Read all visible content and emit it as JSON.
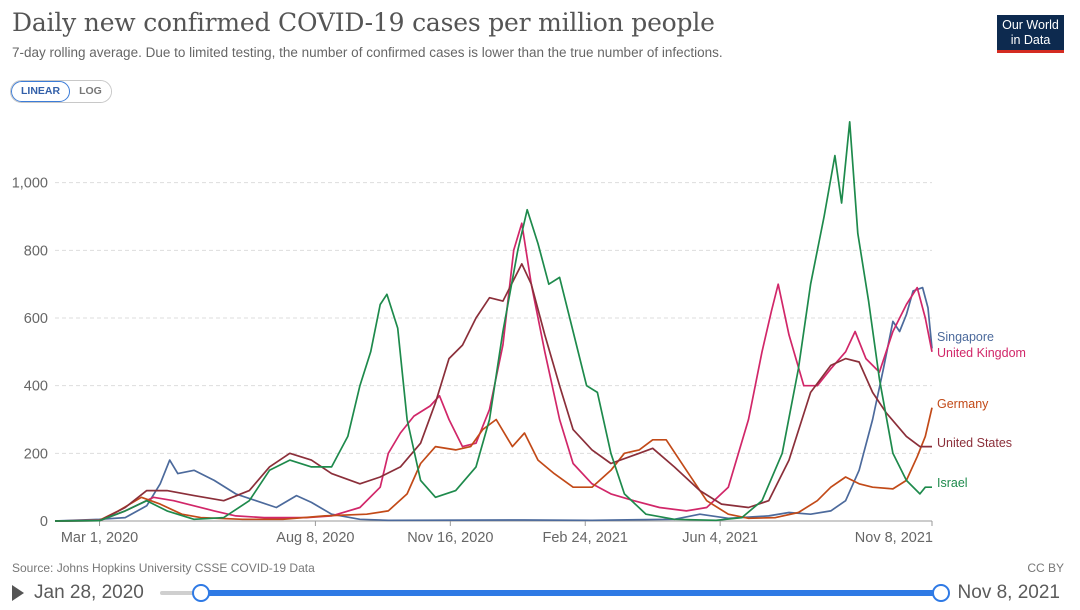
{
  "header": {
    "title": "Daily new confirmed COVID-19 cases per million people",
    "subtitle": "7-day rolling average. Due to limited testing, the number of confirmed cases is lower than the true number of infections."
  },
  "logo": {
    "line1": "Our World",
    "line2": "in Data",
    "bg": "#0d2a4f",
    "accent": "#d42b21"
  },
  "scale_toggle": {
    "linear": "LINEAR",
    "log": "LOG",
    "active": "linear"
  },
  "footer": {
    "source": "Source: Johns Hopkins University CSSE COVID-19 Data",
    "license": "CC BY"
  },
  "timeline": {
    "start": "Jan 28, 2020",
    "end": "Nov 8, 2021",
    "icon": "play-icon"
  },
  "chart_data": {
    "type": "line",
    "title": "Daily new confirmed COVID-19 cases per million people",
    "xlabel": "",
    "ylabel": "",
    "x_range": [
      "2020-01-28",
      "2021-11-08"
    ],
    "ylim": [
      0,
      1200
    ],
    "y_ticks": [
      0,
      200,
      400,
      600,
      800,
      1000
    ],
    "y_tick_labels": [
      "0",
      "200",
      "400",
      "600",
      "800",
      "1,000"
    ],
    "x_ticks": [
      {
        "date": "2020-03-01",
        "label": "Mar 1, 2020"
      },
      {
        "date": "2020-08-08",
        "label": "Aug 8, 2020"
      },
      {
        "date": "2020-11-16",
        "label": "Nov 16, 2020"
      },
      {
        "date": "2021-02-24",
        "label": "Feb 24, 2021"
      },
      {
        "date": "2021-06-04",
        "label": "Jun 4, 2021"
      },
      {
        "date": "2021-11-08",
        "label": "Nov 8, 2021"
      }
    ],
    "grid": "horizontal-dashed",
    "legend": "right-end-labels",
    "series": [
      {
        "name": "Singapore",
        "color": "#4c6a9c",
        "points": [
          [
            "2020-01-28",
            0
          ],
          [
            "2020-03-01",
            5
          ],
          [
            "2020-03-20",
            10
          ],
          [
            "2020-04-05",
            45
          ],
          [
            "2020-04-15",
            110
          ],
          [
            "2020-04-22",
            180
          ],
          [
            "2020-04-28",
            140
          ],
          [
            "2020-05-10",
            150
          ],
          [
            "2020-05-25",
            120
          ],
          [
            "2020-06-10",
            80
          ],
          [
            "2020-06-25",
            60
          ],
          [
            "2020-07-10",
            40
          ],
          [
            "2020-07-25",
            75
          ],
          [
            "2020-08-05",
            55
          ],
          [
            "2020-08-20",
            20
          ],
          [
            "2020-09-10",
            5
          ],
          [
            "2020-10-01",
            2
          ],
          [
            "2021-01-10",
            3
          ],
          [
            "2021-03-01",
            2
          ],
          [
            "2021-05-01",
            5
          ],
          [
            "2021-05-20",
            20
          ],
          [
            "2021-06-10",
            8
          ],
          [
            "2021-07-10",
            15
          ],
          [
            "2021-07-25",
            25
          ],
          [
            "2021-08-10",
            20
          ],
          [
            "2021-08-25",
            30
          ],
          [
            "2021-09-05",
            60
          ],
          [
            "2021-09-15",
            150
          ],
          [
            "2021-09-25",
            300
          ],
          [
            "2021-10-03",
            450
          ],
          [
            "2021-10-10",
            590
          ],
          [
            "2021-10-15",
            560
          ],
          [
            "2021-10-20",
            610
          ],
          [
            "2021-10-25",
            680
          ],
          [
            "2021-11-01",
            690
          ],
          [
            "2021-11-05",
            630
          ],
          [
            "2021-11-08",
            510
          ]
        ]
      },
      {
        "name": "United Kingdom",
        "color": "#d12769",
        "points": [
          [
            "2020-01-28",
            0
          ],
          [
            "2020-03-01",
            1
          ],
          [
            "2020-03-20",
            30
          ],
          [
            "2020-04-10",
            70
          ],
          [
            "2020-04-25",
            60
          ],
          [
            "2020-05-10",
            45
          ],
          [
            "2020-05-25",
            30
          ],
          [
            "2020-06-10",
            15
          ],
          [
            "2020-07-01",
            10
          ],
          [
            "2020-08-01",
            10
          ],
          [
            "2020-08-20",
            15
          ],
          [
            "2020-09-10",
            40
          ],
          [
            "2020-09-25",
            100
          ],
          [
            "2020-10-01",
            200
          ],
          [
            "2020-10-10",
            260
          ],
          [
            "2020-10-20",
            310
          ],
          [
            "2020-11-01",
            340
          ],
          [
            "2020-11-08",
            370
          ],
          [
            "2020-11-15",
            300
          ],
          [
            "2020-11-25",
            220
          ],
          [
            "2020-12-05",
            230
          ],
          [
            "2020-12-15",
            330
          ],
          [
            "2020-12-25",
            520
          ],
          [
            "2021-01-02",
            800
          ],
          [
            "2021-01-08",
            880
          ],
          [
            "2021-01-15",
            700
          ],
          [
            "2021-01-25",
            500
          ],
          [
            "2021-02-05",
            300
          ],
          [
            "2021-02-15",
            170
          ],
          [
            "2021-03-01",
            110
          ],
          [
            "2021-03-15",
            80
          ],
          [
            "2021-04-01",
            60
          ],
          [
            "2021-04-20",
            40
          ],
          [
            "2021-05-10",
            30
          ],
          [
            "2021-05-25",
            40
          ],
          [
            "2021-06-10",
            100
          ],
          [
            "2021-06-25",
            300
          ],
          [
            "2021-07-05",
            500
          ],
          [
            "2021-07-12",
            620
          ],
          [
            "2021-07-17",
            700
          ],
          [
            "2021-07-25",
            550
          ],
          [
            "2021-08-05",
            400
          ],
          [
            "2021-08-15",
            400
          ],
          [
            "2021-08-25",
            450
          ],
          [
            "2021-09-05",
            500
          ],
          [
            "2021-09-12",
            560
          ],
          [
            "2021-09-20",
            480
          ],
          [
            "2021-09-30",
            440
          ],
          [
            "2021-10-10",
            560
          ],
          [
            "2021-10-20",
            640
          ],
          [
            "2021-10-28",
            690
          ],
          [
            "2021-11-03",
            600
          ],
          [
            "2021-11-08",
            500
          ]
        ]
      },
      {
        "name": "Germany",
        "color": "#c24a18",
        "points": [
          [
            "2020-01-28",
            0
          ],
          [
            "2020-03-01",
            2
          ],
          [
            "2020-03-15",
            30
          ],
          [
            "2020-04-01",
            70
          ],
          [
            "2020-04-15",
            50
          ],
          [
            "2020-05-01",
            20
          ],
          [
            "2020-05-15",
            10
          ],
          [
            "2020-06-15",
            5
          ],
          [
            "2020-07-15",
            5
          ],
          [
            "2020-08-15",
            15
          ],
          [
            "2020-09-15",
            20
          ],
          [
            "2020-10-01",
            30
          ],
          [
            "2020-10-15",
            80
          ],
          [
            "2020-10-25",
            170
          ],
          [
            "2020-11-05",
            220
          ],
          [
            "2020-11-20",
            210
          ],
          [
            "2020-12-01",
            220
          ],
          [
            "2020-12-10",
            270
          ],
          [
            "2020-12-20",
            300
          ],
          [
            "2021-01-01",
            220
          ],
          [
            "2021-01-10",
            260
          ],
          [
            "2021-01-20",
            180
          ],
          [
            "2021-02-01",
            140
          ],
          [
            "2021-02-15",
            100
          ],
          [
            "2021-03-01",
            100
          ],
          [
            "2021-03-15",
            150
          ],
          [
            "2021-03-25",
            200
          ],
          [
            "2021-04-05",
            210
          ],
          [
            "2021-04-15",
            240
          ],
          [
            "2021-04-25",
            240
          ],
          [
            "2021-05-10",
            150
          ],
          [
            "2021-05-25",
            60
          ],
          [
            "2021-06-10",
            20
          ],
          [
            "2021-06-25",
            8
          ],
          [
            "2021-07-15",
            10
          ],
          [
            "2021-08-01",
            25
          ],
          [
            "2021-08-15",
            60
          ],
          [
            "2021-08-25",
            100
          ],
          [
            "2021-09-05",
            130
          ],
          [
            "2021-09-15",
            110
          ],
          [
            "2021-09-25",
            100
          ],
          [
            "2021-10-10",
            95
          ],
          [
            "2021-10-20",
            120
          ],
          [
            "2021-10-28",
            190
          ],
          [
            "2021-11-03",
            250
          ],
          [
            "2021-11-08",
            335
          ]
        ]
      },
      {
        "name": "United States",
        "color": "#8b2f3a",
        "points": [
          [
            "2020-01-28",
            0
          ],
          [
            "2020-03-01",
            1
          ],
          [
            "2020-03-20",
            40
          ],
          [
            "2020-04-05",
            90
          ],
          [
            "2020-04-20",
            90
          ],
          [
            "2020-05-10",
            75
          ],
          [
            "2020-06-01",
            60
          ],
          [
            "2020-06-20",
            90
          ],
          [
            "2020-07-05",
            160
          ],
          [
            "2020-07-20",
            200
          ],
          [
            "2020-08-05",
            180
          ],
          [
            "2020-08-20",
            140
          ],
          [
            "2020-09-10",
            110
          ],
          [
            "2020-09-25",
            130
          ],
          [
            "2020-10-10",
            160
          ],
          [
            "2020-10-25",
            230
          ],
          [
            "2020-11-05",
            350
          ],
          [
            "2020-11-15",
            480
          ],
          [
            "2020-11-25",
            520
          ],
          [
            "2020-12-05",
            600
          ],
          [
            "2020-12-15",
            660
          ],
          [
            "2020-12-25",
            650
          ],
          [
            "2021-01-08",
            760
          ],
          [
            "2021-01-15",
            700
          ],
          [
            "2021-01-25",
            550
          ],
          [
            "2021-02-05",
            400
          ],
          [
            "2021-02-15",
            270
          ],
          [
            "2021-03-01",
            210
          ],
          [
            "2021-03-15",
            170
          ],
          [
            "2021-04-05",
            200
          ],
          [
            "2021-04-15",
            215
          ],
          [
            "2021-05-01",
            160
          ],
          [
            "2021-05-20",
            90
          ],
          [
            "2021-06-05",
            50
          ],
          [
            "2021-06-25",
            40
          ],
          [
            "2021-07-10",
            60
          ],
          [
            "2021-07-25",
            180
          ],
          [
            "2021-08-10",
            380
          ],
          [
            "2021-08-25",
            460
          ],
          [
            "2021-09-05",
            480
          ],
          [
            "2021-09-15",
            470
          ],
          [
            "2021-09-25",
            380
          ],
          [
            "2021-10-05",
            320
          ],
          [
            "2021-10-20",
            250
          ],
          [
            "2021-10-30",
            220
          ],
          [
            "2021-11-08",
            220
          ]
        ]
      },
      {
        "name": "Israel",
        "color": "#1e8a4c",
        "points": [
          [
            "2020-01-28",
            0
          ],
          [
            "2020-03-01",
            1
          ],
          [
            "2020-03-20",
            30
          ],
          [
            "2020-04-05",
            60
          ],
          [
            "2020-04-20",
            30
          ],
          [
            "2020-05-10",
            5
          ],
          [
            "2020-06-01",
            10
          ],
          [
            "2020-06-20",
            60
          ],
          [
            "2020-07-05",
            150
          ],
          [
            "2020-07-20",
            180
          ],
          [
            "2020-08-05",
            160
          ],
          [
            "2020-08-20",
            160
          ],
          [
            "2020-09-01",
            250
          ],
          [
            "2020-09-10",
            400
          ],
          [
            "2020-09-18",
            500
          ],
          [
            "2020-09-25",
            640
          ],
          [
            "2020-09-30",
            670
          ],
          [
            "2020-10-08",
            570
          ],
          [
            "2020-10-15",
            300
          ],
          [
            "2020-10-25",
            120
          ],
          [
            "2020-11-05",
            70
          ],
          [
            "2020-11-20",
            90
          ],
          [
            "2020-12-05",
            160
          ],
          [
            "2020-12-15",
            300
          ],
          [
            "2020-12-25",
            560
          ],
          [
            "2021-01-05",
            800
          ],
          [
            "2021-01-12",
            920
          ],
          [
            "2021-01-20",
            820
          ],
          [
            "2021-01-28",
            700
          ],
          [
            "2021-02-05",
            720
          ],
          [
            "2021-02-15",
            560
          ],
          [
            "2021-02-25",
            400
          ],
          [
            "2021-03-05",
            380
          ],
          [
            "2021-03-15",
            200
          ],
          [
            "2021-03-25",
            80
          ],
          [
            "2021-04-10",
            20
          ],
          [
            "2021-05-01",
            5
          ],
          [
            "2021-06-01",
            2
          ],
          [
            "2021-06-20",
            10
          ],
          [
            "2021-07-05",
            60
          ],
          [
            "2021-07-20",
            200
          ],
          [
            "2021-08-01",
            450
          ],
          [
            "2021-08-10",
            700
          ],
          [
            "2021-08-20",
            900
          ],
          [
            "2021-08-28",
            1080
          ],
          [
            "2021-09-02",
            940
          ],
          [
            "2021-09-08",
            1180
          ],
          [
            "2021-09-14",
            850
          ],
          [
            "2021-09-22",
            650
          ],
          [
            "2021-09-30",
            420
          ],
          [
            "2021-10-10",
            200
          ],
          [
            "2021-10-20",
            120
          ],
          [
            "2021-10-30",
            80
          ],
          [
            "2021-11-03",
            100
          ],
          [
            "2021-11-08",
            100
          ]
        ]
      }
    ]
  }
}
